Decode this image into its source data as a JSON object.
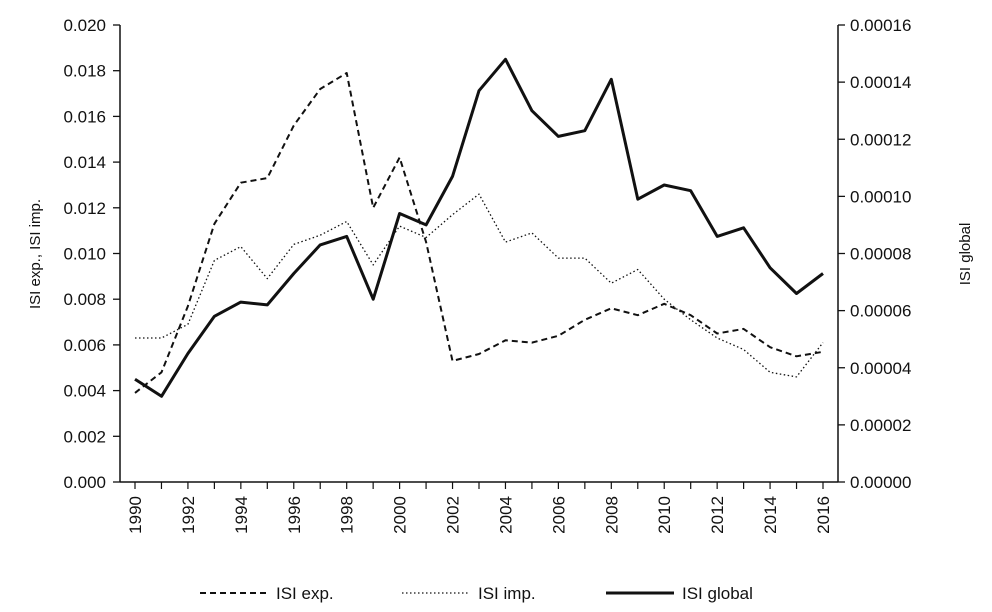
{
  "chart_data": {
    "type": "line",
    "x": [
      1990,
      1991,
      1992,
      1993,
      1994,
      1995,
      1996,
      1997,
      1998,
      1999,
      2000,
      2001,
      2002,
      2003,
      2004,
      2005,
      2006,
      2007,
      2008,
      2009,
      2010,
      2011,
      2012,
      2013,
      2014,
      2015,
      2016
    ],
    "x_tick_labels": [
      "1990",
      "1992",
      "1994",
      "1996",
      "1998",
      "2000",
      "2002",
      "2004",
      "2006",
      "2008",
      "2010",
      "2012",
      "2014",
      "2016"
    ],
    "y_left_ticks": [
      "0.000",
      "0.002",
      "0.004",
      "0.006",
      "0.008",
      "0.010",
      "0.012",
      "0.014",
      "0.016",
      "0.018",
      "0.020"
    ],
    "y_right_ticks": [
      "0.00000",
      "0.00002",
      "0.00004",
      "0.00006",
      "0.00008",
      "0.00010",
      "0.00012",
      "0.00014",
      "0.00016"
    ],
    "ylabel_left": "ISI exp., ISI imp.",
    "ylabel_right": "ISI global",
    "ylim_left": [
      0,
      0.02
    ],
    "ylim_right": [
      0,
      0.00016
    ],
    "xlim": [
      1990,
      2016
    ],
    "grid": false,
    "legend_position": "bottom",
    "series": [
      {
        "name": "ISI exp.",
        "axis": "left",
        "style": "dashed",
        "values": [
          0.0039,
          0.0048,
          0.0077,
          0.0113,
          0.0131,
          0.0133,
          0.0156,
          0.0172,
          0.0179,
          0.012,
          0.0142,
          0.0105,
          0.0053,
          0.0056,
          0.0062,
          0.0061,
          0.0064,
          0.0071,
          0.0076,
          0.0073,
          0.0078,
          0.0073,
          0.0065,
          0.0067,
          0.0059,
          0.0055,
          0.0057
        ]
      },
      {
        "name": "ISI imp.",
        "axis": "left",
        "style": "dotted",
        "values": [
          0.0063,
          0.0063,
          0.0069,
          0.0097,
          0.0103,
          0.0089,
          0.0104,
          0.0108,
          0.0114,
          0.0095,
          0.0112,
          0.0107,
          0.0117,
          0.0126,
          0.0105,
          0.0109,
          0.0098,
          0.0098,
          0.0087,
          0.0093,
          0.008,
          0.0071,
          0.0063,
          0.0058,
          0.0048,
          0.0046,
          0.0061
        ]
      },
      {
        "name": "ISI global",
        "axis": "right",
        "style": "solid",
        "values": [
          3.6e-05,
          3e-05,
          4.5e-05,
          5.8e-05,
          6.3e-05,
          6.2e-05,
          7.3e-05,
          8.3e-05,
          8.6e-05,
          6.4e-05,
          9.4e-05,
          9e-05,
          0.000107,
          0.000137,
          0.000148,
          0.00013,
          0.000121,
          0.000123,
          0.000141,
          9.9e-05,
          0.000104,
          0.000102,
          8.6e-05,
          8.9e-05,
          7.5e-05,
          6.6e-05,
          7.3e-05
        ]
      }
    ]
  }
}
